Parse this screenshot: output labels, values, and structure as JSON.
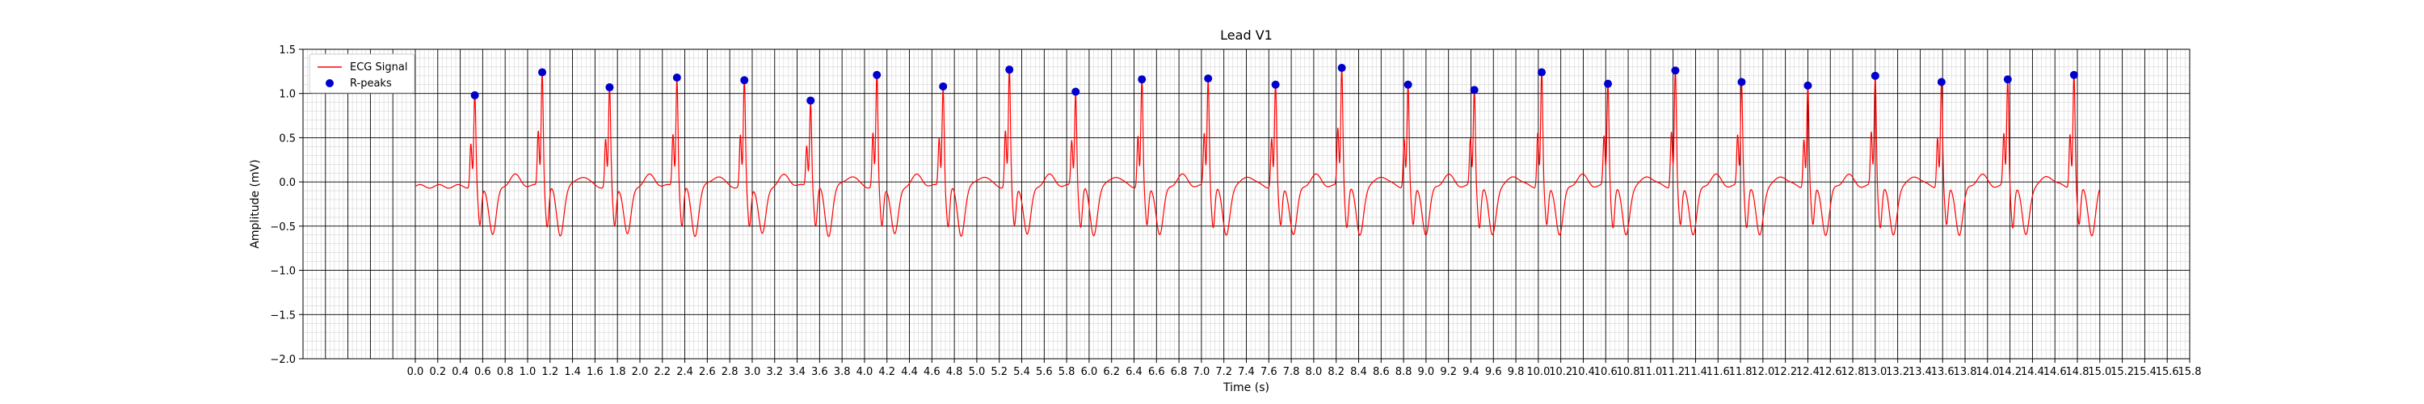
{
  "chart_data": {
    "type": "line",
    "title": "Lead V1",
    "xlabel": "Time (s)",
    "ylabel": "Amplitude (mV)",
    "xlim": [
      -1.0,
      15.8
    ],
    "ylim": [
      -2.0,
      1.5
    ],
    "xticks": [
      "0.0",
      "0.2",
      "0.4",
      "0.6",
      "0.8",
      "1.0",
      "1.2",
      "1.4",
      "1.6",
      "1.8",
      "2.0",
      "2.2",
      "2.4",
      "2.6",
      "2.8",
      "3.0",
      "3.2",
      "3.4",
      "3.6",
      "3.8",
      "4.0",
      "4.2",
      "4.4",
      "4.6",
      "4.8",
      "5.0",
      "5.2",
      "5.4",
      "5.6",
      "5.8",
      "6.0",
      "6.2",
      "6.4",
      "6.6",
      "6.8",
      "7.0",
      "7.2",
      "7.4",
      "7.6",
      "7.8",
      "8.0",
      "8.2",
      "8.4",
      "8.6",
      "8.8",
      "9.0",
      "9.2",
      "9.4",
      "9.6",
      "9.8",
      "10.0",
      "10.2",
      "10.4",
      "10.6",
      "10.8",
      "11.0",
      "11.2",
      "11.4",
      "11.6",
      "11.8",
      "12.0",
      "12.2",
      "12.4",
      "12.6",
      "12.8",
      "13.0",
      "13.2",
      "13.4",
      "13.6",
      "13.8",
      "14.0",
      "14.2",
      "14.4",
      "14.6",
      "14.8",
      "15.0",
      "15.2",
      "15.4",
      "15.6",
      "15.8"
    ],
    "xtick_labels": [
      "0.0",
      "0.2",
      "0.4",
      "0.6",
      "0.8",
      "1.0",
      "1.2",
      "1.4",
      "1.6",
      "1.8",
      "2.0",
      "2.2",
      "2.4",
      "2.6",
      "2.8",
      "3.0",
      "3.2",
      "3.4",
      "3.6",
      "3.8",
      "4.0",
      "4.2",
      "4.4",
      "4.6",
      "4.8",
      "5.0",
      "5.2",
      "5.4",
      "5.6",
      "5.8",
      "6.0",
      "6.2",
      "6.4",
      "6.6",
      "6.8",
      "7.0",
      "7.2",
      "7.4",
      "7.6",
      "7.8",
      "8.0",
      "8.2",
      "8.4",
      "8.6",
      "8.8",
      "9.0",
      "9.2",
      "9.4",
      "9.6",
      "9.8",
      "10.0",
      "10.2",
      "10.4",
      "10.6",
      "10.8",
      "11.0",
      "11.2",
      "11.4",
      "11.6",
      "11.8",
      "12.0",
      "12.2",
      "12.4",
      "12.6",
      "12.8",
      "13.0",
      "13.2",
      "13.4",
      "13.6",
      "13.8",
      "14.0",
      "14.2",
      "14.4",
      "14.6",
      "14.8",
      "15.0",
      "15.2",
      "15.4",
      "15.6",
      "15.8"
    ],
    "yticks": [
      -2.0,
      -1.5,
      -1.0,
      -0.5,
      0.0,
      0.5,
      1.0,
      1.5
    ],
    "ytick_labels": [
      "−2.0",
      "−1.5",
      "−1.0",
      "−0.5",
      "0.0",
      "0.5",
      "1.0",
      "1.5"
    ],
    "grid": {
      "major_x_step": 0.2,
      "major_y_step": 0.5,
      "minor_x_step": 0.04,
      "minor_y_step": 0.1
    },
    "legend": {
      "position": "upper left",
      "entries": [
        {
          "label": "ECG Signal",
          "kind": "line",
          "color": "#ff0000"
        },
        {
          "label": "R-peaks",
          "kind": "marker",
          "color": "#0000cc"
        }
      ]
    },
    "series": [
      {
        "name": "ECG Signal",
        "kind": "line",
        "color": "#ff0000",
        "x_start": 0.0,
        "x_end": 15.0,
        "baseline_y": -0.05
      },
      {
        "name": "R-peaks",
        "kind": "scatter",
        "color": "#0000cc",
        "points": [
          {
            "x": 0.53,
            "y": 0.98
          },
          {
            "x": 1.13,
            "y": 1.24
          },
          {
            "x": 1.73,
            "y": 1.07
          },
          {
            "x": 2.33,
            "y": 1.18
          },
          {
            "x": 2.93,
            "y": 1.15
          },
          {
            "x": 3.52,
            "y": 0.92
          },
          {
            "x": 4.11,
            "y": 1.21
          },
          {
            "x": 4.7,
            "y": 1.08
          },
          {
            "x": 5.29,
            "y": 1.27
          },
          {
            "x": 5.88,
            "y": 1.02
          },
          {
            "x": 6.47,
            "y": 1.16
          },
          {
            "x": 7.06,
            "y": 1.17
          },
          {
            "x": 7.66,
            "y": 1.1
          },
          {
            "x": 8.25,
            "y": 1.29
          },
          {
            "x": 8.84,
            "y": 1.1
          },
          {
            "x": 9.43,
            "y": 1.04
          },
          {
            "x": 10.03,
            "y": 1.24
          },
          {
            "x": 10.62,
            "y": 1.11
          },
          {
            "x": 11.22,
            "y": 1.26
          },
          {
            "x": 11.81,
            "y": 1.13
          },
          {
            "x": 12.4,
            "y": 1.09
          },
          {
            "x": 13.0,
            "y": 1.2
          },
          {
            "x": 13.59,
            "y": 1.13
          },
          {
            "x": 14.18,
            "y": 1.16
          },
          {
            "x": 14.77,
            "y": 1.21
          }
        ]
      }
    ]
  },
  "colors": {
    "signal": "#ff0000",
    "peak": "#0000cc",
    "major_grid": "#000000",
    "minor_grid": "#cccccc",
    "axis": "#000000"
  }
}
